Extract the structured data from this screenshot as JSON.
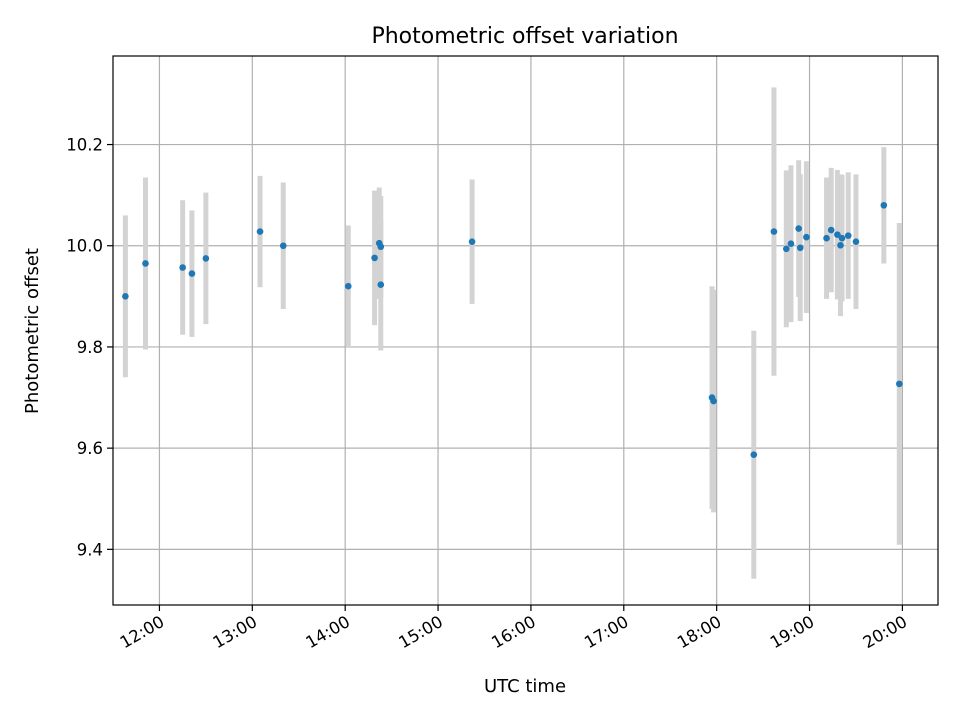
{
  "chart_data": {
    "type": "scatter",
    "title": "Photometric offset variation",
    "xlabel": "UTC time",
    "ylabel": "Photometric offset",
    "x_axis_type": "time",
    "xlim": [
      "11:30",
      "20:23"
    ],
    "ylim": [
      9.29,
      10.375
    ],
    "x_ticks": [
      "12:00",
      "13:00",
      "14:00",
      "15:00",
      "16:00",
      "17:00",
      "18:00",
      "19:00",
      "20:00"
    ],
    "y_ticks": [
      9.4,
      9.6,
      9.8,
      10.0,
      10.2
    ],
    "y_tick_labels": [
      "9.4",
      "9.6",
      "9.8",
      "10.0",
      "10.2"
    ],
    "grid": true,
    "marker_color": "#1f77b4",
    "errorbar_color": "#d3d3d3",
    "series": [
      {
        "points": [
          {
            "x": "11:38",
            "y": 9.9,
            "err": 0.16
          },
          {
            "x": "11:51",
            "y": 9.965,
            "err": 0.17
          },
          {
            "x": "12:15",
            "y": 9.957,
            "err": 0.133
          },
          {
            "x": "12:21",
            "y": 9.945,
            "err": 0.125
          },
          {
            "x": "12:30",
            "y": 9.975,
            "err": 0.13
          },
          {
            "x": "13:05",
            "y": 10.028,
            "err": 0.11
          },
          {
            "x": "13:20",
            "y": 10.0,
            "err": 0.125
          },
          {
            "x": "14:02",
            "y": 9.92,
            "err": 0.12
          },
          {
            "x": "14:19",
            "y": 9.976,
            "err": 0.133
          },
          {
            "x": "14:22",
            "y": 10.005,
            "err": 0.11
          },
          {
            "x": "14:23",
            "y": 9.923,
            "err": 0.13
          },
          {
            "x": "14:23",
            "y": 9.998,
            "err": 0.1
          },
          {
            "x": "15:22",
            "y": 10.008,
            "err": 0.123
          },
          {
            "x": "17:57",
            "y": 9.7,
            "err": 0.22
          },
          {
            "x": "17:58",
            "y": 9.693,
            "err": 0.22
          },
          {
            "x": "18:24",
            "y": 9.587,
            "err": 0.245
          },
          {
            "x": "18:37",
            "y": 10.028,
            "err": 0.285
          },
          {
            "x": "18:45",
            "y": 9.994,
            "err": 0.155
          },
          {
            "x": "18:48",
            "y": 10.004,
            "err": 0.155
          },
          {
            "x": "18:53",
            "y": 10.034,
            "err": 0.135
          },
          {
            "x": "18:54",
            "y": 9.996,
            "err": 0.145
          },
          {
            "x": "18:58",
            "y": 10.017,
            "err": 0.15
          },
          {
            "x": "19:11",
            "y": 10.015,
            "err": 0.12
          },
          {
            "x": "19:14",
            "y": 10.031,
            "err": 0.123
          },
          {
            "x": "19:18",
            "y": 10.022,
            "err": 0.128
          },
          {
            "x": "19:20",
            "y": 10.001,
            "err": 0.14
          },
          {
            "x": "19:21",
            "y": 10.015,
            "err": 0.125
          },
          {
            "x": "19:25",
            "y": 10.02,
            "err": 0.125
          },
          {
            "x": "19:30",
            "y": 10.008,
            "err": 0.133
          },
          {
            "x": "19:48",
            "y": 10.08,
            "err": 0.115
          },
          {
            "x": "19:58",
            "y": 9.727,
            "err": 0.318
          }
        ]
      }
    ]
  }
}
